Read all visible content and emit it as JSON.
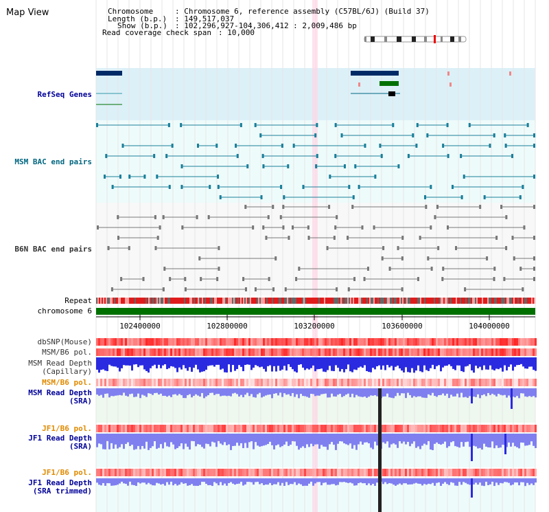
{
  "view_title": "Map View",
  "info": {
    "chromosome_label": "Chromosome",
    "chromosome_value": ": Chromosome 6, reference assembly (C57BL/6J) (Build 37)",
    "length_label": "Length (b.p.)",
    "length_value": ": 149,517,037",
    "show_label": "Show (b.p.)",
    "show_value": ": 102,296,927-104,306,412 : 2,009,486 bp",
    "coverage_label": "Read coverage check span",
    "coverage_value": ": 10,000"
  },
  "tracks": {
    "refseq": "RefSeq Genes",
    "msm_bac": "MSM BAC end pairs",
    "b6n_bac": "B6N BAC end pairs",
    "repeat": "Repeat",
    "chromosome": "chromosome 6",
    "dbsnp": "dbSNP(Mouse)",
    "msm_b6_pol_1": "MSM/B6 pol.",
    "msm_depth_cap_1": "MSM Read Depth",
    "msm_depth_cap_2": "(Capillary)",
    "msm_b6_pol_2": "MSM/B6 pol.",
    "msm_depth_sra_1": "MSM Read Depth",
    "msm_depth_sra_2": "(SRA)",
    "jf1_b6_pol_1": "JF1/B6 pol.",
    "jf1_depth_sra_1": "JF1 Read Depth",
    "jf1_depth_sra_2": "(SRA)",
    "jf1_b6_pol_2": "JF1/B6 pol.",
    "jf1_depth_trim_1": "JF1 Read Depth",
    "jf1_depth_trim_2": "(SRA trimmed)"
  },
  "ruler": {
    "ticks": [
      "102400000",
      "102800000",
      "103200000",
      "103600000",
      "104000000"
    ]
  },
  "colors": {
    "refseq_label": "#000099",
    "msm_bac_label": "#006680",
    "b6n_bac_label": "#333333",
    "pol_orange": "#e08a00",
    "depth_label": "#000099",
    "chromosome_bar": "#007000"
  }
}
